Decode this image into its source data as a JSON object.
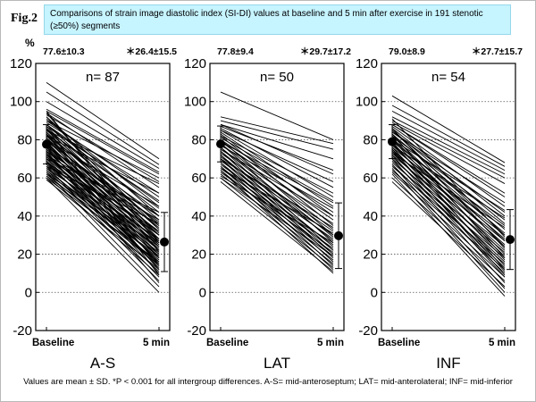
{
  "figure": {
    "label": "Fig.2",
    "title": "Comparisons of strain image diastolic index (SI-DI) values at baseline and 5 min after exercise in 191 stenotic (≥50%) segments",
    "footnote": "Values are mean ± SD. *P < 0.001 for all intergroup differences. A-S= mid-anteroseptum; LAT= mid-anterolateral; INF= mid-inferior",
    "y_unit": "%"
  },
  "chart_data": [
    {
      "type": "line",
      "panel": "A-S",
      "n_label": "n= 87",
      "categories": [
        "Baseline",
        "5 min"
      ],
      "ylim": [
        -20,
        120
      ],
      "yticks": [
        -20,
        0,
        20,
        40,
        60,
        80,
        100,
        120
      ],
      "grid": "dotted",
      "mean": [
        77.6,
        26.4
      ],
      "sd": [
        10.3,
        15.5
      ],
      "stat_labels": [
        "77.6±10.3",
        "＊26.4±15.5"
      ],
      "series": [
        [
          110,
          70
        ],
        [
          105,
          67
        ],
        [
          100,
          65
        ],
        [
          96,
          63
        ],
        [
          95,
          62
        ],
        [
          94,
          55
        ],
        [
          93,
          58
        ],
        [
          92,
          40
        ],
        [
          91,
          45
        ],
        [
          90,
          50
        ],
        [
          89,
          52
        ],
        [
          88,
          35
        ],
        [
          88,
          42
        ],
        [
          87,
          30
        ],
        [
          87,
          48
        ],
        [
          86,
          38
        ],
        [
          86,
          28
        ],
        [
          85,
          33
        ],
        [
          85,
          44
        ],
        [
          84,
          25
        ],
        [
          84,
          31
        ],
        [
          83,
          36
        ],
        [
          83,
          22
        ],
        [
          82,
          40
        ],
        [
          82,
          27
        ],
        [
          81,
          30
        ],
        [
          81,
          18
        ],
        [
          80,
          34
        ],
        [
          80,
          24
        ],
        [
          79,
          37
        ],
        [
          79,
          20
        ],
        [
          78,
          28
        ],
        [
          78,
          15
        ],
        [
          77,
          32
        ],
        [
          77,
          22
        ],
        [
          76,
          26
        ],
        [
          76,
          12
        ],
        [
          75,
          30
        ],
        [
          75,
          18
        ],
        [
          74,
          24
        ],
        [
          74,
          35
        ],
        [
          73,
          20
        ],
        [
          73,
          10
        ],
        [
          72,
          27
        ],
        [
          72,
          16
        ],
        [
          71,
          22
        ],
        [
          71,
          30
        ],
        [
          70,
          14
        ],
        [
          70,
          25
        ],
        [
          69,
          19
        ],
        [
          69,
          8
        ],
        [
          68,
          23
        ],
        [
          68,
          13
        ],
        [
          67,
          28
        ],
        [
          67,
          17
        ],
        [
          66,
          21
        ],
        [
          66,
          6
        ],
        [
          65,
          15
        ],
        [
          65,
          26
        ],
        [
          64,
          11
        ],
        [
          64,
          20
        ],
        [
          63,
          18
        ],
        [
          63,
          3
        ],
        [
          62,
          14
        ],
        [
          62,
          24
        ],
        [
          61,
          9
        ],
        [
          61,
          19
        ],
        [
          60,
          16
        ],
        [
          60,
          0
        ],
        [
          59,
          12
        ],
        [
          90,
          60
        ],
        [
          85,
          57
        ],
        [
          80,
          45
        ],
        [
          88,
          47
        ],
        [
          92,
          33
        ],
        [
          76,
          40
        ],
        [
          72,
          38
        ],
        [
          70,
          42
        ],
        [
          83,
          14
        ],
        [
          95,
          21
        ],
        [
          86,
          9
        ],
        [
          74,
          5
        ],
        [
          68,
          32
        ],
        [
          79,
          12
        ],
        [
          94,
          26
        ],
        [
          66,
          36
        ],
        [
          82,
          52
        ]
      ]
    },
    {
      "type": "line",
      "panel": "LAT",
      "n_label": "n= 50",
      "categories": [
        "Baseline",
        "5 min"
      ],
      "ylim": [
        -20,
        120
      ],
      "yticks": [
        -20,
        0,
        20,
        40,
        60,
        80,
        100,
        120
      ],
      "grid": "dotted",
      "mean": [
        77.8,
        29.7
      ],
      "sd": [
        9.4,
        17.2
      ],
      "stat_labels": [
        "77.8±9.4",
        "＊29.7±17.2"
      ],
      "series": [
        [
          105,
          80
        ],
        [
          92,
          78
        ],
        [
          90,
          75
        ],
        [
          88,
          70
        ],
        [
          87,
          64
        ],
        [
          86,
          55
        ],
        [
          85,
          50
        ],
        [
          84,
          45
        ],
        [
          83,
          40
        ],
        [
          82,
          35
        ],
        [
          81,
          48
        ],
        [
          80,
          30
        ],
        [
          80,
          42
        ],
        [
          79,
          38
        ],
        [
          78,
          26
        ],
        [
          78,
          33
        ],
        [
          77,
          44
        ],
        [
          76,
          22
        ],
        [
          76,
          29
        ],
        [
          75,
          36
        ],
        [
          74,
          20
        ],
        [
          74,
          27
        ],
        [
          73,
          32
        ],
        [
          72,
          18
        ],
        [
          72,
          24
        ],
        [
          71,
          30
        ],
        [
          70,
          16
        ],
        [
          70,
          22
        ],
        [
          69,
          28
        ],
        [
          68,
          14
        ],
        [
          68,
          20
        ],
        [
          67,
          25
        ],
        [
          66,
          12
        ],
        [
          66,
          19
        ],
        [
          65,
          23
        ],
        [
          64,
          10
        ],
        [
          64,
          17
        ],
        [
          63,
          21
        ],
        [
          62,
          15
        ],
        [
          61,
          26
        ],
        [
          60,
          13
        ],
        [
          60,
          19
        ],
        [
          58,
          11
        ],
        [
          85,
          58
        ],
        [
          82,
          52
        ],
        [
          79,
          47
        ],
        [
          88,
          62
        ],
        [
          75,
          40
        ],
        [
          70,
          34
        ],
        [
          65,
          31
        ]
      ]
    },
    {
      "type": "line",
      "panel": "INF",
      "n_label": "n= 54",
      "categories": [
        "Baseline",
        "5 min"
      ],
      "ylim": [
        -20,
        120
      ],
      "yticks": [
        -20,
        0,
        20,
        40,
        60,
        80,
        100,
        120
      ],
      "grid": "dotted",
      "mean": [
        79.0,
        27.7
      ],
      "sd": [
        8.9,
        15.7
      ],
      "stat_labels": [
        "79.0±8.9",
        "＊27.7±15.7"
      ],
      "series": [
        [
          103,
          68
        ],
        [
          98,
          66
        ],
        [
          95,
          64
        ],
        [
          92,
          62
        ],
        [
          90,
          60
        ],
        [
          89,
          57
        ],
        [
          88,
          50
        ],
        [
          87,
          45
        ],
        [
          86,
          40
        ],
        [
          85,
          36
        ],
        [
          85,
          30
        ],
        [
          84,
          42
        ],
        [
          83,
          33
        ],
        [
          82,
          27
        ],
        [
          82,
          38
        ],
        [
          81,
          24
        ],
        [
          80,
          31
        ],
        [
          80,
          20
        ],
        [
          79,
          35
        ],
        [
          78,
          28
        ],
        [
          78,
          17
        ],
        [
          77,
          25
        ],
        [
          76,
          30
        ],
        [
          76,
          14
        ],
        [
          75,
          22
        ],
        [
          74,
          27
        ],
        [
          74,
          11
        ],
        [
          73,
          19
        ],
        [
          72,
          24
        ],
        [
          72,
          8
        ],
        [
          71,
          16
        ],
        [
          70,
          21
        ],
        [
          70,
          5
        ],
        [
          69,
          13
        ],
        [
          68,
          18
        ],
        [
          67,
          2
        ],
        [
          67,
          10
        ],
        [
          66,
          15
        ],
        [
          65,
          0
        ],
        [
          64,
          12
        ],
        [
          63,
          8
        ],
        [
          62,
          -2
        ],
        [
          60,
          6
        ],
        [
          58,
          3
        ],
        [
          88,
          52
        ],
        [
          84,
          47
        ],
        [
          80,
          43
        ],
        [
          77,
          39
        ],
        [
          73,
          34
        ],
        [
          91,
          29
        ],
        [
          86,
          23
        ],
        [
          83,
          18
        ],
        [
          79,
          12
        ],
        [
          75,
          9
        ]
      ]
    }
  ]
}
